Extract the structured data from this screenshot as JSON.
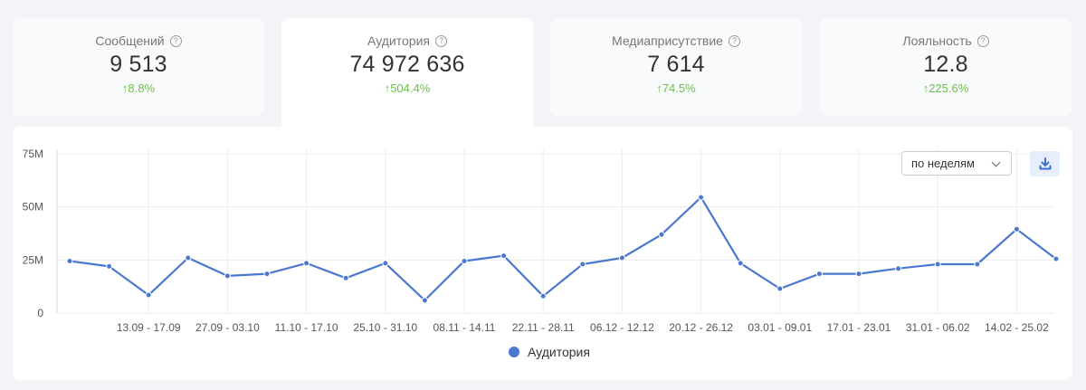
{
  "kpis": [
    {
      "label": "Сообщений",
      "value": "9 513",
      "change": "↑8.8%"
    },
    {
      "label": "Аудитория",
      "value": "74 972 636",
      "change": "↑504.4%"
    },
    {
      "label": "Медиаприсутствие",
      "value": "7 614",
      "change": "↑74.5%"
    },
    {
      "label": "Лояльность",
      "value": "12.8",
      "change": "↑225.6%"
    }
  ],
  "help_glyph": "?",
  "period_select": {
    "value": "по неделям"
  },
  "icons": {
    "help": "help-circle-icon",
    "chevron": "chevron-down-icon",
    "download": "download-icon"
  },
  "colors": {
    "accent": "#4a78cf",
    "positive": "#6cbf4a"
  },
  "chart_data": {
    "type": "line",
    "series": [
      {
        "name": "Аудитория",
        "color": "#4a78cf",
        "values": [
          24.5,
          22,
          8.5,
          26,
          17.5,
          18.5,
          23.5,
          16.5,
          23.5,
          6,
          24.5,
          27,
          8,
          23,
          26,
          37,
          54.5,
          23.5,
          11.5,
          18.5,
          18.5,
          21,
          23,
          23,
          39.5,
          25.5
        ]
      }
    ],
    "x_tick_labels": [
      "13.09 - 17.09",
      "27.09 - 03.10",
      "11.10 - 17.10",
      "25.10 - 31.10",
      "08.11 - 14.11",
      "22.11 - 28.11",
      "06.12 - 12.12",
      "20.12 - 26.12",
      "03.01 - 09.01",
      "17.01 - 23.01",
      "31.01 - 06.02",
      "14.02 - 25.02"
    ],
    "y_ticks": [
      0,
      25,
      50,
      75
    ],
    "y_tick_labels": [
      "0",
      "25M",
      "50M",
      "75M"
    ],
    "ylim": [
      0,
      75
    ],
    "grid": true,
    "legend_position": "bottom-center"
  }
}
